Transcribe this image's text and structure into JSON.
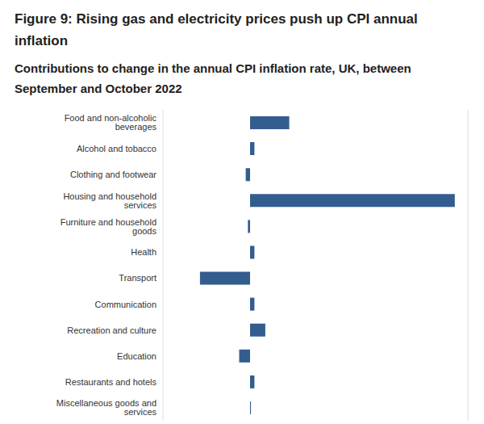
{
  "chart_data": {
    "type": "bar",
    "title": "Figure 9: Rising gas and electricity prices push up CPI annual inflation",
    "subtitle": "Contributions to change in the annual CPI inflation rate, UK, between September and October 2022",
    "categories": [
      "Food and non-alcoholic beverages",
      "Alcohol and tobacco",
      "Clothing and footwear",
      "Housing and household services",
      "Furniture and household goods",
      "Health",
      "Transport",
      "Communication",
      "Recreation and culture",
      "Education",
      "Restaurants and hotels",
      "Miscellaneous goods and services"
    ],
    "values": [
      0.18,
      0.02,
      -0.02,
      0.94,
      -0.01,
      0.02,
      -0.23,
      0.02,
      0.07,
      -0.05,
      0.02,
      0.004
    ],
    "color": "#345d8f",
    "orientation": "horizontal",
    "xlim": [
      -0.4,
      1.0
    ],
    "xticks": [
      -0.4,
      -0.2,
      0,
      0.2,
      0.4,
      0.6,
      0.8,
      1.0
    ],
    "grid": true,
    "tick_labels": "y"
  }
}
